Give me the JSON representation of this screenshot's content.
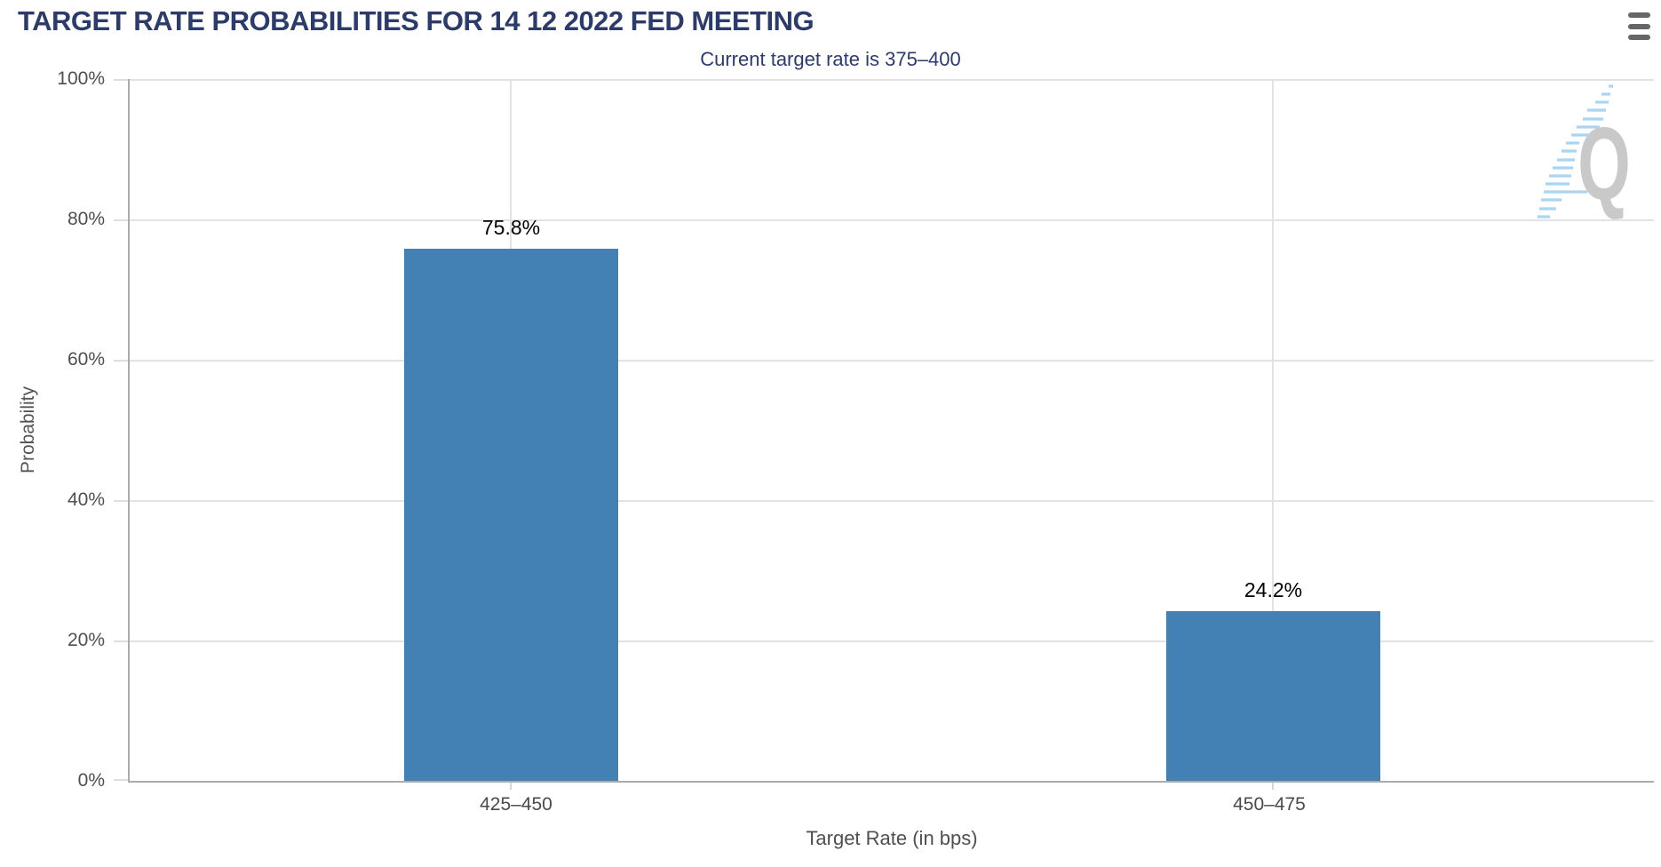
{
  "header": {
    "title": "TARGET RATE PROBABILITIES FOR 14 12 2022 FED MEETING",
    "menu_icon": "hamburger-icon"
  },
  "chart_data": {
    "type": "bar",
    "title": "TARGET RATE PROBABILITIES FOR 14 12 2022 FED MEETING",
    "subtitle": "Current target rate is 375–400",
    "categories": [
      "425–450",
      "450–475"
    ],
    "values": [
      75.8,
      24.2
    ],
    "data_labels": [
      "75.8%",
      "24.2%"
    ],
    "xlabel": "Target Rate (in bps)",
    "ylabel": "Probability",
    "ylim": [
      0,
      100
    ],
    "ytick_labels_top_to_bottom": [
      "100%",
      "80%",
      "60%",
      "40%",
      "20%",
      "0%"
    ],
    "grid": true,
    "legend": "none",
    "bar_color": "#4380B4"
  },
  "watermark": {
    "letter": "Q"
  },
  "colors": {
    "title": "#2D3B69",
    "subtitle": "#2D3B69",
    "bar": "#4380B4",
    "gridline": "#E2E2E2",
    "axis_line": "#ABABAB",
    "tick_label": "#4F4F4F",
    "data_label": "#000000",
    "menu_icon": "#666666",
    "watermark_letter": "#C9C9C9",
    "watermark_hatch": "#A9D4F2"
  }
}
